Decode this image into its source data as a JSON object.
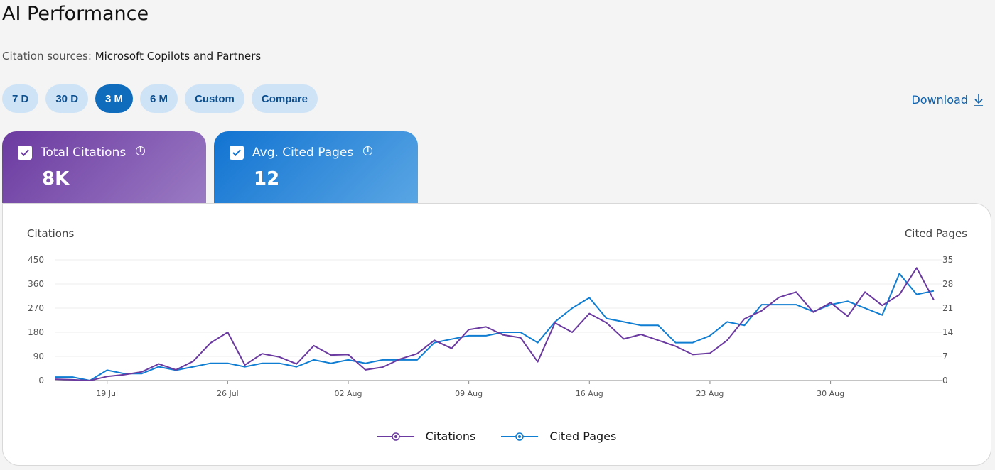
{
  "page": {
    "title": "AI Performance"
  },
  "sources": {
    "label": "Citation sources:",
    "value": "Microsoft Copilots and Partners"
  },
  "ranges": [
    {
      "label": "7 D",
      "active": false
    },
    {
      "label": "30 D",
      "active": false
    },
    {
      "label": "3 M",
      "active": true
    },
    {
      "label": "6 M",
      "active": false
    },
    {
      "label": "Custom",
      "active": false
    },
    {
      "label": "Compare",
      "active": false
    }
  ],
  "download": {
    "label": "Download",
    "icon": "download-icon"
  },
  "metrics": {
    "citations": {
      "label": "Total Citations",
      "value": "8K",
      "checked": true,
      "icon": "info-icon"
    },
    "pages": {
      "label": "Avg. Cited Pages",
      "value": "12",
      "checked": true,
      "icon": "info-icon"
    }
  },
  "colors": {
    "citations": "#6b3aa0",
    "pages": "#0f7dd1",
    "accent": "#0f6cbd"
  },
  "chart_data": {
    "type": "line",
    "left_axis_title": "Citations",
    "right_axis_title": "Cited Pages",
    "y_left": {
      "ticks": [
        0,
        90,
        180,
        270,
        360,
        450
      ],
      "range": [
        0,
        450
      ]
    },
    "y_right": {
      "ticks": [
        0,
        7,
        14,
        21,
        28,
        35
      ],
      "range": [
        0,
        35
      ]
    },
    "x_ticks": [
      {
        "label": "19 Jul",
        "pos": 3
      },
      {
        "label": "26 Jul",
        "pos": 10
      },
      {
        "label": "02 Aug",
        "pos": 17
      },
      {
        "label": "09 Aug",
        "pos": 24
      },
      {
        "label": "16 Aug",
        "pos": 31
      },
      {
        "label": "23 Aug",
        "pos": 38
      },
      {
        "label": "30 Aug",
        "pos": 45
      }
    ],
    "grid": true,
    "legend_position": "bottom",
    "series": [
      {
        "name": "Citations",
        "axis": "left",
        "values": [
          5,
          3,
          0,
          15,
          22,
          32,
          62,
          40,
          72,
          140,
          180,
          58,
          100,
          88,
          62,
          130,
          95,
          97,
          40,
          50,
          80,
          100,
          150,
          120,
          190,
          200,
          170,
          160,
          70,
          215,
          180,
          250,
          215,
          155,
          172,
          150,
          128,
          97,
          102,
          150,
          230,
          260,
          310,
          330,
          255,
          290,
          240,
          330,
          280,
          320,
          420,
          300
        ]
      },
      {
        "name": "Cited Pages",
        "axis": "right",
        "values": [
          1,
          1,
          0,
          3,
          2,
          2,
          4,
          3,
          4,
          5,
          5,
          4,
          5,
          5,
          4,
          6,
          5,
          6,
          5,
          6,
          6,
          6,
          11,
          12,
          13,
          13,
          14,
          14,
          11,
          17,
          21,
          24,
          18,
          17,
          16,
          16,
          11,
          11,
          13,
          17,
          16,
          22,
          22,
          22,
          20,
          22,
          23,
          21,
          19,
          31,
          25,
          26
        ]
      }
    ]
  }
}
